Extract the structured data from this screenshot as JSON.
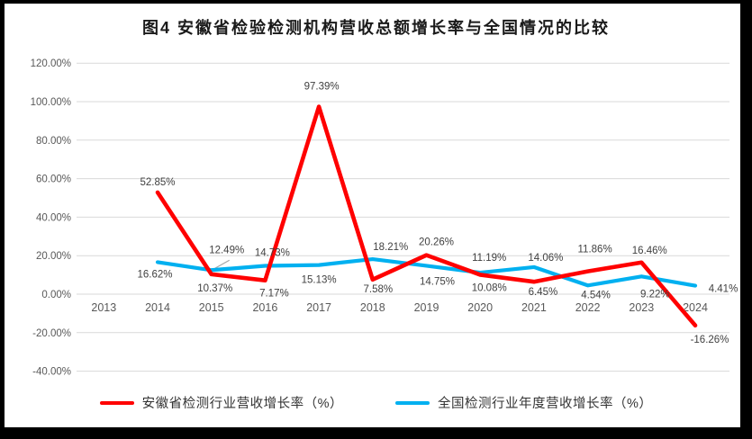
{
  "figure": {
    "title": "图4 安徽省检验检测机构营收总额增长率与全国情况的比较"
  },
  "chart_data": {
    "type": "line",
    "title": "图4 安徽省检验检测机构营收总额增长率与全国情况的比较",
    "categories": [
      "2013",
      "2014",
      "2015",
      "2016",
      "2017",
      "2018",
      "2019",
      "2020",
      "2021",
      "2022",
      "2023",
      "2024"
    ],
    "series": [
      {
        "name": "安徽省检测行业营收增长率（%）",
        "color": "#FF0000",
        "values": [
          null,
          52.85,
          10.37,
          7.17,
          97.39,
          7.58,
          20.26,
          10.08,
          6.45,
          11.86,
          16.46,
          -16.26
        ],
        "data_labels": [
          "",
          "52.85%",
          "10.37%",
          "7.17%",
          "97.39%",
          "7.58%",
          "20.26%",
          "10.08%",
          "6.45%",
          "11.86%",
          "16.46%",
          "-16.26%"
        ],
        "label_dx": [
          0,
          0,
          4,
          10,
          3,
          6,
          11,
          10,
          10,
          8,
          9,
          16
        ],
        "label_dy": [
          0,
          -8,
          19,
          18,
          -19,
          14,
          -11,
          18,
          15,
          -21,
          -10,
          19
        ]
      },
      {
        "name": "全国检测行业年度营收增长率（%）",
        "color": "#00B0F0",
        "values": [
          null,
          16.62,
          12.49,
          14.73,
          15.13,
          18.21,
          14.75,
          11.19,
          14.06,
          4.54,
          9.22,
          4.41
        ],
        "data_labels": [
          "",
          "16.62%",
          "12.49%",
          "14.73%",
          "15.13%",
          "18.21%",
          "14.75%",
          "11.19%",
          "14.06%",
          "4.54%",
          "9.22%",
          "4.41%"
        ],
        "label_dx": [
          0,
          -3,
          17,
          8,
          0,
          20,
          12,
          10,
          13,
          9,
          15,
          31
        ],
        "label_dy": [
          0,
          17,
          -19,
          -11,
          20,
          -10,
          21,
          -13,
          -7,
          14,
          23,
          7
        ]
      }
    ],
    "ylim": [
      -40,
      120
    ],
    "ytick_step": 20,
    "ytick_labels": [
      "120.00%",
      "100.00%",
      "80.00%",
      "60.00%",
      "40.00%",
      "20.00%",
      "0.00%",
      "-20.00%",
      "-40.00%"
    ],
    "grid": true,
    "legend_position": "bottom",
    "leader_line": {
      "series": 1,
      "index": 2
    }
  },
  "legend": {
    "items": [
      {
        "label": "安徽省检测行业营收增长率（%）",
        "color": "#FF0000"
      },
      {
        "label": "全国检测行业年度营收增长率（%）",
        "color": "#00B0F0"
      }
    ]
  },
  "colors": {
    "background": "#FFFFFF",
    "frame": "#000000",
    "gridline": "#D9D9D9",
    "axis_text": "#595959",
    "data_label_text": "#404040",
    "leader": "#A6A6A6"
  }
}
